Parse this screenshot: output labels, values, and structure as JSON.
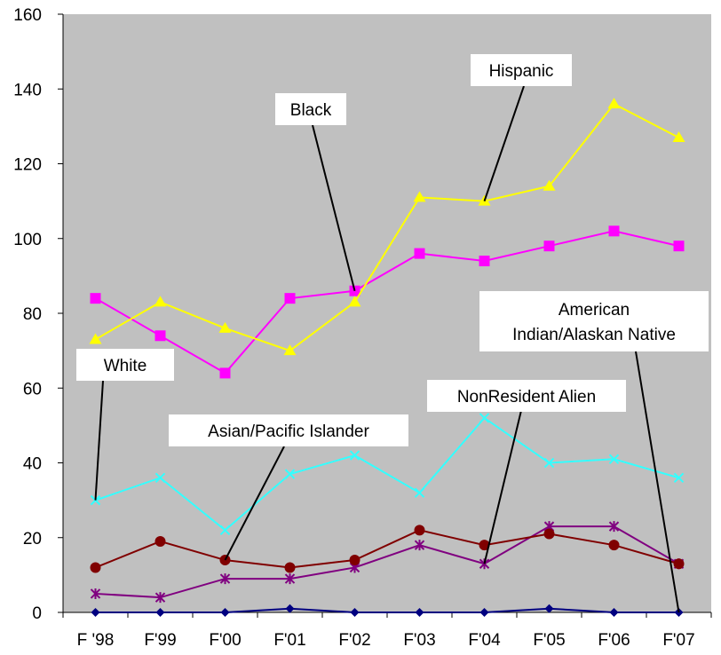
{
  "chart_data": {
    "type": "line",
    "categories": [
      "F '98",
      "F'99",
      "F'00",
      "F'01",
      "F'02",
      "F'03",
      "F'04",
      "F'05",
      "F'06",
      "F'07"
    ],
    "ylim": [
      0,
      160
    ],
    "yticks": [
      0,
      20,
      40,
      60,
      80,
      100,
      120,
      140,
      160
    ],
    "grid": false,
    "plot_background": "#c0c0c0",
    "series": [
      {
        "name": "Hispanic",
        "marker": "triangle",
        "color": "#ffff00",
        "values": [
          73,
          83,
          76,
          70,
          83,
          111,
          110,
          114,
          136,
          127
        ]
      },
      {
        "name": "Black",
        "marker": "square",
        "color": "#ff00ff",
        "values": [
          84,
          74,
          64,
          84,
          86,
          96,
          94,
          98,
          102,
          98
        ]
      },
      {
        "name": "White",
        "marker": "x",
        "color": "#33ffff",
        "values": [
          30,
          36,
          22,
          37,
          42,
          32,
          52,
          40,
          41,
          36
        ]
      },
      {
        "name": "Asian/Pacific Islander",
        "marker": "circle",
        "color": "#800000",
        "values": [
          12,
          19,
          14,
          12,
          14,
          22,
          18,
          21,
          18,
          13
        ]
      },
      {
        "name": "NonResident Alien",
        "marker": "star",
        "color": "#800080",
        "values": [
          5,
          4,
          9,
          9,
          12,
          18,
          13,
          23,
          23,
          13
        ]
      },
      {
        "name": "American Indian/Alaskan Native",
        "marker": "diamond",
        "color": "#000080",
        "values": [
          0,
          0,
          0,
          1,
          0,
          0,
          0,
          1,
          0,
          0
        ]
      }
    ],
    "annotations": [
      {
        "lines": [
          "Hispanic"
        ],
        "series": "Hispanic",
        "point": 6
      },
      {
        "lines": [
          "Black"
        ],
        "series": "Black",
        "point": 4
      },
      {
        "lines": [
          "White"
        ],
        "series": "White",
        "point": 0
      },
      {
        "lines": [
          "Asian/Pacific Islander"
        ],
        "series": "Asian/Pacific Islander",
        "point": 2
      },
      {
        "lines": [
          "NonResident Alien"
        ],
        "series": "NonResident Alien",
        "point": 6
      },
      {
        "lines": [
          "American",
          "Indian/Alaskan Native"
        ],
        "series": "American Indian/Alaskan Native",
        "point": 9
      }
    ]
  }
}
